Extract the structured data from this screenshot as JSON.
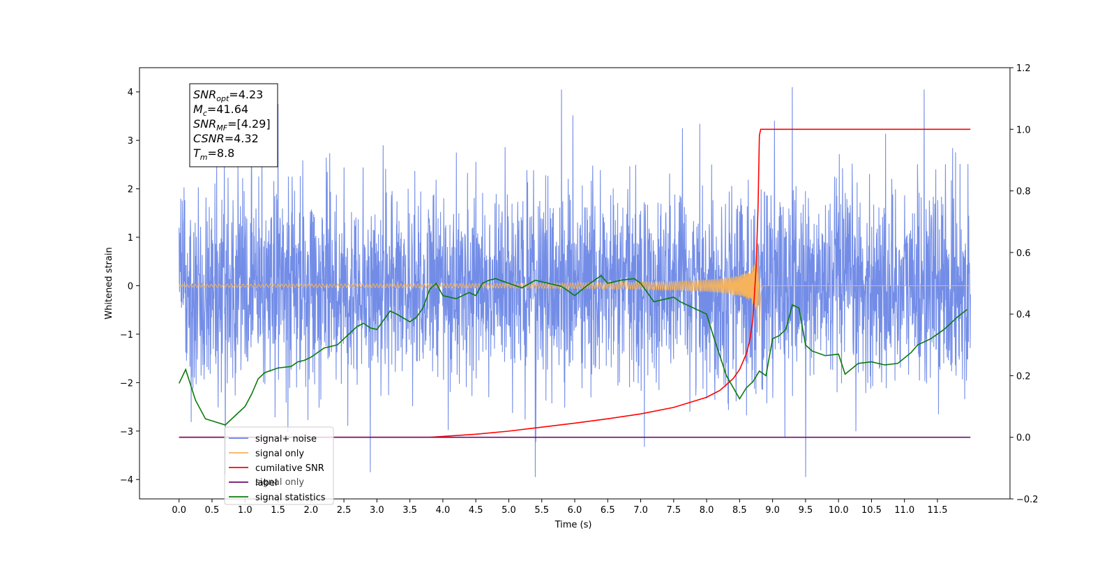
{
  "chart_data": {
    "type": "line",
    "xlabel": "Time (s)",
    "ylabel_left": "Whitened strain",
    "ylabel_right": "",
    "xlim": [
      -0.6,
      12.6
    ],
    "ylim_left": [
      -4.4,
      4.5
    ],
    "ylim_right": [
      -0.2,
      1.2
    ],
    "xticks": [
      0.0,
      0.5,
      1.0,
      1.5,
      2.0,
      2.5,
      3.0,
      3.5,
      4.0,
      4.5,
      5.0,
      5.5,
      6.0,
      6.5,
      7.0,
      7.5,
      8.0,
      8.5,
      9.0,
      9.5,
      10.0,
      10.5,
      11.0,
      11.5
    ],
    "xtick_labels": [
      "0.0",
      "0.5",
      "1.0",
      "1.5",
      "2.0",
      "2.5",
      "3.0",
      "3.5",
      "4.0",
      "4.5",
      "5.0",
      "5.5",
      "6.0",
      "6.5",
      "7.0",
      "7.5",
      "8.0",
      "8.5",
      "9.0",
      "9.5",
      "10.0",
      "10.5",
      "11.0",
      "11.5"
    ],
    "yticks_left": [
      -4,
      -3,
      -2,
      -1,
      0,
      1,
      2,
      3,
      4
    ],
    "ytick_labels_left": [
      "−4",
      "−3",
      "−2",
      "−1",
      "0",
      "1",
      "2",
      "3",
      "4"
    ],
    "yticks_right": [
      -0.2,
      0.0,
      0.2,
      0.4,
      0.6,
      0.8,
      1.0,
      1.2
    ],
    "ytick_labels_right": [
      "−0.2",
      "0.0",
      "0.2",
      "0.4",
      "0.6",
      "0.8",
      "1.0",
      "1.2"
    ],
    "grid": false,
    "legend_placement": "lower-left",
    "annotation": {
      "lines": [
        {
          "base": "SNR",
          "sub": "opt",
          "rest": "=4.23"
        },
        {
          "base": "M",
          "sub": "c",
          "rest": "=41.64"
        },
        {
          "base": "SNR",
          "sub": "MF",
          "rest": "=[4.29]"
        },
        {
          "base": "CSNR",
          "sub": "",
          "rest": "=4.32"
        },
        {
          "base": "T",
          "sub": "m",
          "rest": "=8.8"
        }
      ]
    },
    "legend_ghost_text": "signal only",
    "series": [
      {
        "name": "signal+ noise",
        "axis": "left",
        "color": "#6b87e6",
        "kind": "noise",
        "t_range": [
          0.0,
          12.0
        ],
        "sigma": 1.0,
        "y_range_observed": [
          -4.0,
          4.1
        ],
        "spikes": [
          [
            5.8,
            4.05
          ],
          [
            9.3,
            4.1
          ],
          [
            11.3,
            4.05
          ],
          [
            1.5,
            3.75
          ],
          [
            5.4,
            -3.95
          ],
          [
            9.5,
            -3.95
          ],
          [
            2.9,
            -3.85
          ],
          [
            0.7,
            -3.9
          ],
          [
            1.1,
            3.65
          ]
        ]
      },
      {
        "name": "signal only",
        "axis": "left",
        "color": "#f5b35c",
        "kind": "chirp",
        "t_range": [
          0.0,
          12.0
        ],
        "merger_time": 8.8,
        "peak_amplitude": 1.15
      },
      {
        "name": "cumilative SNR",
        "axis": "right",
        "color": "#ff0000",
        "x": [
          0.0,
          3.8,
          4.5,
          5.0,
          5.5,
          6.0,
          6.5,
          7.0,
          7.5,
          8.0,
          8.2,
          8.4,
          8.5,
          8.6,
          8.65,
          8.7,
          8.75,
          8.78,
          8.8,
          8.82,
          12.0
        ],
        "y": [
          0.0,
          0.0,
          0.01,
          0.02,
          0.033,
          0.046,
          0.06,
          0.076,
          0.097,
          0.13,
          0.152,
          0.19,
          0.22,
          0.27,
          0.31,
          0.38,
          0.55,
          0.75,
          0.98,
          1.0,
          1.0
        ]
      },
      {
        "name": "label",
        "axis": "right",
        "color": "#6a0d6e",
        "x": [
          0.0,
          12.0
        ],
        "y": [
          0.0,
          0.0
        ]
      },
      {
        "name": "signal statistics",
        "axis": "right",
        "color": "#0b7a0b",
        "x": [
          0.0,
          0.1,
          0.25,
          0.4,
          0.55,
          0.7,
          0.8,
          1.0,
          1.1,
          1.2,
          1.3,
          1.5,
          1.7,
          1.8,
          1.9,
          2.0,
          2.2,
          2.4,
          2.5,
          2.7,
          2.8,
          2.9,
          3.0,
          3.1,
          3.2,
          3.3,
          3.5,
          3.6,
          3.7,
          3.8,
          3.9,
          4.0,
          4.1,
          4.2,
          4.4,
          4.5,
          4.6,
          4.7,
          4.8,
          5.0,
          5.2,
          5.4,
          5.6,
          5.8,
          6.0,
          6.2,
          6.4,
          6.5,
          6.7,
          6.9,
          7.0,
          7.2,
          7.4,
          7.5,
          7.6,
          7.8,
          8.0,
          8.1,
          8.3,
          8.5,
          8.6,
          8.7,
          8.8,
          8.9,
          9.0,
          9.1,
          9.2,
          9.3,
          9.4,
          9.5,
          9.6,
          9.8,
          10.0,
          10.1,
          10.3,
          10.5,
          10.7,
          10.9,
          11.1,
          11.2,
          11.4,
          11.6,
          11.8,
          11.95
        ],
        "y": [
          0.175,
          0.22,
          0.12,
          0.06,
          0.05,
          0.04,
          0.06,
          0.1,
          0.14,
          0.19,
          0.21,
          0.225,
          0.23,
          0.245,
          0.25,
          0.26,
          0.29,
          0.3,
          0.32,
          0.36,
          0.37,
          0.355,
          0.35,
          0.38,
          0.41,
          0.4,
          0.375,
          0.39,
          0.42,
          0.48,
          0.5,
          0.46,
          0.455,
          0.45,
          0.47,
          0.46,
          0.5,
          0.51,
          0.515,
          0.5,
          0.485,
          0.51,
          0.5,
          0.49,
          0.46,
          0.495,
          0.525,
          0.5,
          0.51,
          0.515,
          0.5,
          0.44,
          0.45,
          0.455,
          0.44,
          0.42,
          0.4,
          0.33,
          0.2,
          0.125,
          0.16,
          0.18,
          0.215,
          0.2,
          0.32,
          0.33,
          0.35,
          0.43,
          0.42,
          0.3,
          0.28,
          0.265,
          0.27,
          0.205,
          0.24,
          0.245,
          0.235,
          0.24,
          0.275,
          0.3,
          0.32,
          0.35,
          0.39,
          0.415
        ]
      }
    ]
  }
}
